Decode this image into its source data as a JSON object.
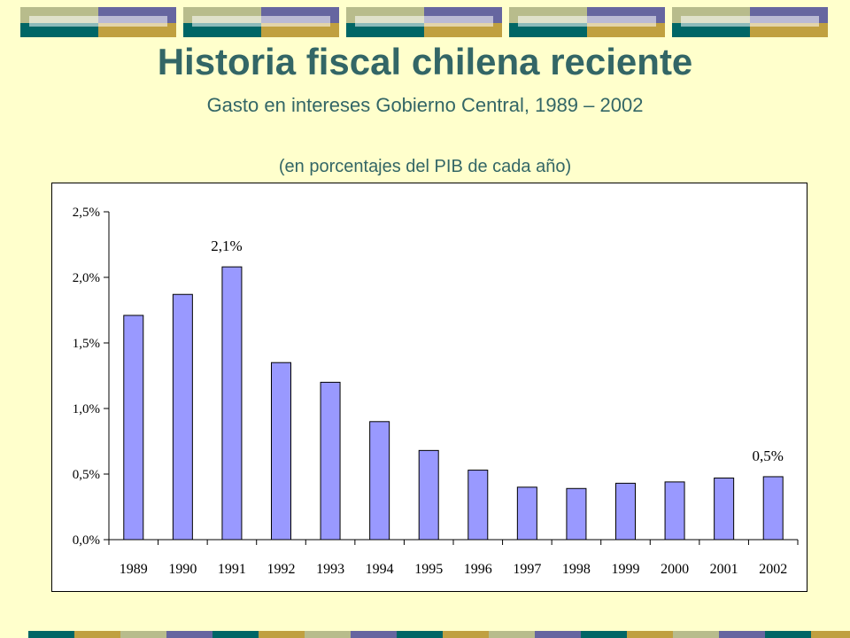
{
  "slide": {
    "title": "Historia fiscal chilena reciente",
    "subtitle": "Gasto en intereses Gobierno Central, 1989 – 2002",
    "unit_note": "(en porcentajes del PIB de cada año)"
  },
  "colors": {
    "background": "#ffffcc",
    "title": "#336666",
    "bar_fill": "#9999ff",
    "bar_stroke": "#000000",
    "deco_teal": "#006666",
    "deco_olive": "#c0a040",
    "deco_sage": "#b8bc8c",
    "deco_slate": "#6666a0"
  },
  "chart_data": {
    "type": "bar",
    "categories": [
      "1989",
      "1990",
      "1991",
      "1992",
      "1993",
      "1994",
      "1995",
      "1996",
      "1997",
      "1998",
      "1999",
      "2000",
      "2001",
      "2002"
    ],
    "values": [
      1.71,
      1.87,
      2.08,
      1.35,
      1.2,
      0.9,
      0.68,
      0.53,
      0.4,
      0.39,
      0.43,
      0.44,
      0.47,
      0.48
    ],
    "ylim": [
      0,
      2.5
    ],
    "yticks": [
      "0,0%",
      "0,5%",
      "1,0%",
      "1,5%",
      "2,0%",
      "2,5%"
    ],
    "ytick_values": [
      0,
      0.5,
      1.0,
      1.5,
      2.0,
      2.5
    ],
    "annotations": [
      {
        "category": "1991",
        "text": "2,1%"
      },
      {
        "category": "2002",
        "text": "0,5%"
      }
    ],
    "grid": false,
    "legend": "none",
    "xlabel": "",
    "ylabel": ""
  }
}
